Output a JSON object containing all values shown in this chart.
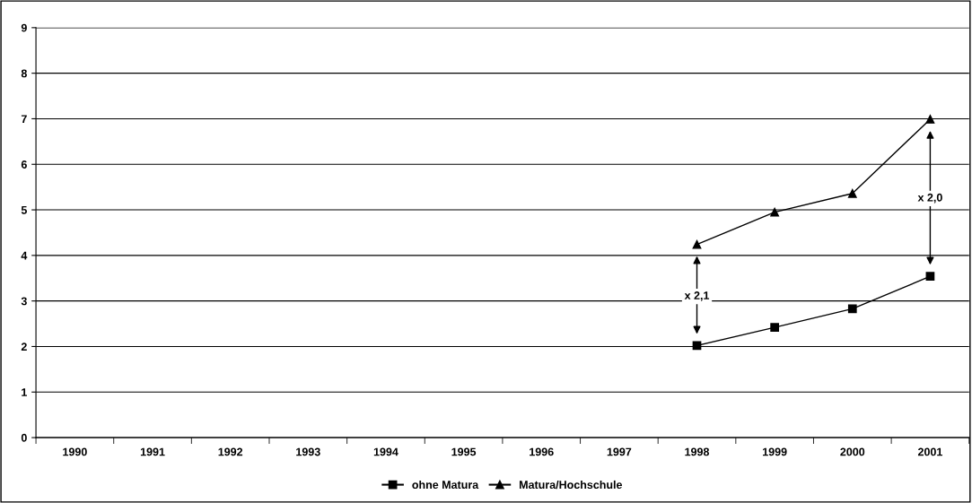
{
  "chart_data": {
    "type": "line",
    "categories": [
      "1990",
      "1991",
      "1992",
      "1993",
      "1994",
      "1995",
      "1996",
      "1997",
      "1998",
      "1999",
      "2000",
      "2001"
    ],
    "series": [
      {
        "name": "ohne Matura",
        "color": "#000000",
        "marker": "square",
        "values": [
          null,
          null,
          null,
          null,
          null,
          null,
          null,
          null,
          2.02,
          2.42,
          2.83,
          3.54
        ]
      },
      {
        "name": "Matura/Hochschule",
        "color": "#000000",
        "marker": "triangle",
        "values": [
          null,
          null,
          null,
          null,
          null,
          null,
          null,
          null,
          4.24,
          4.95,
          5.36,
          6.99
        ]
      }
    ],
    "ylim": [
      0,
      9
    ],
    "yticks": [
      0,
      1,
      2,
      3,
      4,
      5,
      6,
      7,
      8,
      9
    ],
    "grid": "y",
    "legend": "bottom",
    "line_style": "solid",
    "annotations": [
      {
        "text": "x 2,1",
        "x": "1998",
        "y": 3.1
      },
      {
        "text": "x 2,0",
        "x": "2001",
        "y": 5.25
      }
    ]
  }
}
